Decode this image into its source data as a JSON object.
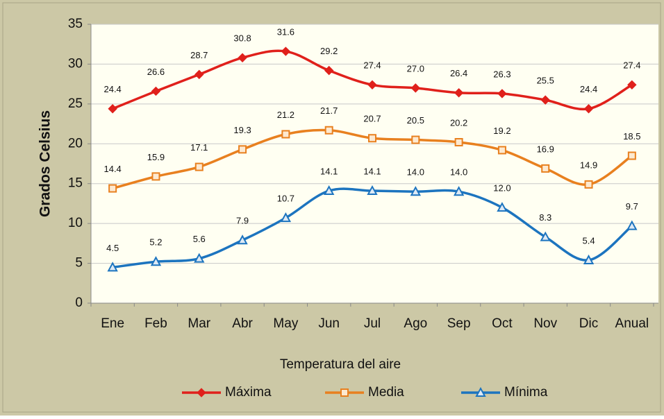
{
  "chart_data": {
    "type": "line",
    "x_label": "Temperatura del aire",
    "y_label": "Grados Celsius",
    "categories": [
      "Ene",
      "Feb",
      "Mar",
      "Abr",
      "May",
      "Jun",
      "Jul",
      "Ago",
      "Sep",
      "Oct",
      "Nov",
      "Dic",
      "Anual"
    ],
    "series": [
      {
        "name": "Máxima",
        "color": "#e0201b",
        "marker": "diamond",
        "values": [
          24.4,
          26.6,
          28.7,
          30.8,
          31.6,
          29.2,
          27.4,
          27,
          26.4,
          26.3,
          25.5,
          24.4,
          27.4
        ],
        "value_labels": [
          "24.4",
          "26.6",
          "28.7",
          "30.8",
          "31.6",
          "29.2",
          "27.4",
          "27.0",
          "26.4",
          "26.3",
          "25.5",
          "24.4",
          "27.4"
        ]
      },
      {
        "name": "Media",
        "color": "#e8801f",
        "marker": "square",
        "values": [
          14.4,
          15.9,
          17.1,
          19.3,
          21.2,
          21.7,
          20.7,
          20.5,
          20.2,
          19.2,
          16.9,
          14.9,
          18.5
        ],
        "value_labels": [
          "14.4",
          "15.9",
          "17.1",
          "19.3",
          "21.2",
          "21.7",
          "20.7",
          "20.5",
          "20.2",
          "19.2",
          "16.9",
          "14.9",
          "18.5"
        ]
      },
      {
        "name": "Mínima",
        "color": "#1c74bf",
        "marker": "triangle",
        "values": [
          4.5,
          5.2,
          5.6,
          7.9,
          10.7,
          14.1,
          14.1,
          14,
          14,
          12,
          8.3,
          5.4,
          9.7
        ],
        "value_labels": [
          "4.5",
          "5.2",
          "5.6",
          "7.9",
          "10.7",
          "14.1",
          "14.1",
          "14.0",
          "14.0",
          "12.0",
          "8.3",
          "5.4",
          "9.7"
        ]
      }
    ],
    "ylim": [
      0,
      35
    ],
    "yticks": [
      0,
      5,
      10,
      15,
      20,
      25,
      30,
      35
    ],
    "grid": true,
    "smooth": true,
    "legend": "bottom"
  }
}
